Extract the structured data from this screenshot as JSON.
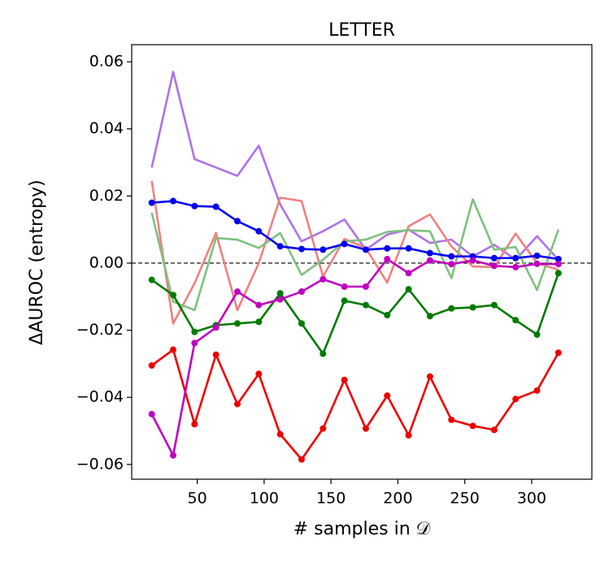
{
  "chart_data": {
    "type": "line",
    "title": "LETTER",
    "xlabel": "# samples in 𝒟",
    "ylabel": "ΔAUROC (entropy)",
    "x": [
      16,
      32,
      48,
      64,
      80,
      96,
      112,
      128,
      144,
      160,
      176,
      192,
      208,
      224,
      240,
      256,
      272,
      288,
      304,
      320
    ],
    "series": [
      {
        "color": "#9b4fe0",
        "opacity": 0.8,
        "marker": false,
        "values": [
          0.0285,
          0.057,
          0.031,
          0.0285,
          0.026,
          0.035,
          0.0175,
          0.0065,
          0.0095,
          0.013,
          0.004,
          0.0085,
          0.01,
          0.006,
          0.007,
          0.002,
          0.0055,
          0.001,
          0.008,
          0.001
        ]
      },
      {
        "color": "#f08080",
        "opacity": 1,
        "marker": false,
        "values": [
          0.0245,
          -0.018,
          -0.006,
          0.009,
          -0.014,
          0.0,
          0.0195,
          0.0185,
          -0.004,
          0.0072,
          0.0045,
          -0.0058,
          0.011,
          0.0145,
          0.005,
          -0.001,
          -0.0012,
          0.0088,
          0.0,
          -0.002
        ]
      },
      {
        "color": "#80c080",
        "opacity": 1,
        "marker": false,
        "values": [
          0.015,
          -0.0115,
          -0.014,
          0.0075,
          0.007,
          0.0045,
          0.009,
          -0.0035,
          0.001,
          0.0065,
          0.007,
          0.0093,
          0.0098,
          0.0095,
          -0.0045,
          0.019,
          0.004,
          0.0048,
          -0.008,
          0.01
        ]
      },
      {
        "color": "#0000ee",
        "opacity": 1,
        "marker": true,
        "values": [
          0.018,
          0.0185,
          0.017,
          0.0168,
          0.0125,
          0.0095,
          0.005,
          0.0042,
          0.004,
          0.0057,
          0.004,
          0.0044,
          0.0044,
          0.003,
          0.002,
          0.002,
          0.0015,
          0.0015,
          0.0022,
          0.0012
        ]
      },
      {
        "color": "#007a00",
        "opacity": 1,
        "marker": true,
        "values": [
          -0.005,
          -0.0095,
          -0.0205,
          -0.0185,
          -0.018,
          -0.0175,
          -0.009,
          -0.018,
          -0.027,
          -0.0112,
          -0.0125,
          -0.0155,
          -0.0078,
          -0.0158,
          -0.0135,
          -0.0132,
          -0.0125,
          -0.017,
          -0.0213,
          -0.003
        ]
      },
      {
        "color": "#ee0000",
        "opacity": 1,
        "marker": true,
        "values": [
          -0.0305,
          -0.0258,
          -0.048,
          -0.0273,
          -0.042,
          -0.033,
          -0.051,
          -0.0585,
          -0.0493,
          -0.0348,
          -0.0493,
          -0.0395,
          -0.0513,
          -0.0338,
          -0.0467,
          -0.0485,
          -0.0497,
          -0.0405,
          -0.038,
          -0.0267
        ]
      },
      {
        "color": "#c000c0",
        "opacity": 1,
        "marker": true,
        "values": [
          -0.045,
          -0.0573,
          -0.0238,
          -0.0192,
          -0.0085,
          -0.0125,
          -0.0108,
          -0.0085,
          -0.0048,
          -0.007,
          -0.007,
          0.0012,
          -0.003,
          0.0008,
          -0.0003,
          0.0008,
          -0.0008,
          -0.0012,
          -0.0002,
          -0.0003
        ]
      }
    ],
    "reference_line": {
      "y": 0,
      "style": "dashed"
    },
    "xlim": [
      1,
      345
    ],
    "xticks": [
      50,
      100,
      150,
      200,
      250,
      300
    ],
    "ylim": [
      -0.0644,
      0.0651
    ],
    "yticks": [
      {
        "value": -0.06,
        "label": "−0.06"
      },
      {
        "value": -0.04,
        "label": "−0.04"
      },
      {
        "value": -0.02,
        "label": "−0.02"
      },
      {
        "value": 0,
        "label": "0.00"
      },
      0.02,
      0.04,
      0.06
    ],
    "grid": false
  }
}
